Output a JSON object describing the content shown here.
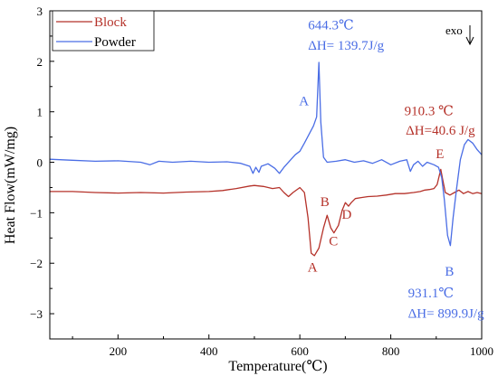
{
  "chart_data": {
    "type": "line",
    "xlabel": "Temperature(℃)",
    "ylabel": "Heat Flow(mW/mg)",
    "xlim": [
      50,
      1000
    ],
    "ylim": [
      -3.5,
      3
    ],
    "x_ticks": [
      200,
      400,
      600,
      800,
      1000
    ],
    "x_tick_labels": [
      "200",
      "400",
      "600",
      "800",
      "1000"
    ],
    "y_ticks": [
      3,
      2,
      1,
      0,
      -1,
      -2,
      -3
    ],
    "y_tick_labels": [
      "3",
      "2",
      "1",
      "0",
      "−1",
      "−2",
      "−3"
    ],
    "grid": false,
    "legend_position": "top-left",
    "exo_label": "exo",
    "series": [
      {
        "name": "Block",
        "color": "#b5322a",
        "points": [
          [
            50,
            -0.58
          ],
          [
            100,
            -0.58
          ],
          [
            150,
            -0.6
          ],
          [
            200,
            -0.61
          ],
          [
            250,
            -0.6
          ],
          [
            300,
            -0.61
          ],
          [
            350,
            -0.59
          ],
          [
            400,
            -0.58
          ],
          [
            430,
            -0.56
          ],
          [
            460,
            -0.52
          ],
          [
            490,
            -0.47
          ],
          [
            500,
            -0.46
          ],
          [
            520,
            -0.48
          ],
          [
            540,
            -0.52
          ],
          [
            555,
            -0.5
          ],
          [
            565,
            -0.6
          ],
          [
            575,
            -0.68
          ],
          [
            585,
            -0.6
          ],
          [
            600,
            -0.5
          ],
          [
            610,
            -0.6
          ],
          [
            618,
            -1.1
          ],
          [
            625,
            -1.8
          ],
          [
            632,
            -1.85
          ],
          [
            642,
            -1.7
          ],
          [
            652,
            -1.3
          ],
          [
            660,
            -1.05
          ],
          [
            668,
            -1.3
          ],
          [
            675,
            -1.4
          ],
          [
            685,
            -1.25
          ],
          [
            693,
            -0.95
          ],
          [
            700,
            -0.8
          ],
          [
            707,
            -0.87
          ],
          [
            713,
            -0.8
          ],
          [
            722,
            -0.72
          ],
          [
            735,
            -0.7
          ],
          [
            750,
            -0.68
          ],
          [
            770,
            -0.67
          ],
          [
            790,
            -0.65
          ],
          [
            810,
            -0.62
          ],
          [
            830,
            -0.62
          ],
          [
            850,
            -0.6
          ],
          [
            865,
            -0.58
          ],
          [
            875,
            -0.55
          ],
          [
            885,
            -0.54
          ],
          [
            895,
            -0.52
          ],
          [
            902,
            -0.44
          ],
          [
            910,
            -0.14
          ],
          [
            914,
            -0.33
          ],
          [
            920,
            -0.6
          ],
          [
            930,
            -0.65
          ],
          [
            940,
            -0.6
          ],
          [
            950,
            -0.55
          ],
          [
            960,
            -0.62
          ],
          [
            970,
            -0.58
          ],
          [
            980,
            -0.62
          ],
          [
            990,
            -0.6
          ],
          [
            1000,
            -0.62
          ]
        ],
        "peak_labels": [
          {
            "text": "A",
            "x": 628,
            "y": -2.17
          },
          {
            "text": "B",
            "x": 655,
            "y": -0.87
          },
          {
            "text": "C",
            "x": 674,
            "y": -1.65
          },
          {
            "text": "D",
            "x": 703,
            "y": -1.12
          },
          {
            "text": "E",
            "x": 908,
            "y": 0.08
          }
        ],
        "annotations": [
          {
            "text": "910.3 ℃",
            "x": 830,
            "y": 0.93
          },
          {
            "text": "ΔH=40.6 J/g",
            "x": 833,
            "y": 0.55
          }
        ]
      },
      {
        "name": "Powder",
        "color": "#4a6de5",
        "points": [
          [
            50,
            0.06
          ],
          [
            100,
            0.04
          ],
          [
            150,
            0.02
          ],
          [
            200,
            0.03
          ],
          [
            250,
            0.0
          ],
          [
            270,
            -0.05
          ],
          [
            290,
            0.02
          ],
          [
            320,
            0.0
          ],
          [
            360,
            0.02
          ],
          [
            400,
            0.0
          ],
          [
            440,
            0.01
          ],
          [
            470,
            -0.02
          ],
          [
            490,
            -0.08
          ],
          [
            497,
            -0.22
          ],
          [
            503,
            -0.1
          ],
          [
            510,
            -0.2
          ],
          [
            515,
            -0.08
          ],
          [
            530,
            -0.03
          ],
          [
            545,
            -0.12
          ],
          [
            555,
            -0.22
          ],
          [
            565,
            -0.1
          ],
          [
            580,
            0.05
          ],
          [
            590,
            0.15
          ],
          [
            600,
            0.22
          ],
          [
            610,
            0.38
          ],
          [
            620,
            0.55
          ],
          [
            630,
            0.72
          ],
          [
            637,
            0.9
          ],
          [
            642,
            1.98
          ],
          [
            646,
            0.8
          ],
          [
            652,
            0.1
          ],
          [
            660,
            0.0
          ],
          [
            680,
            0.02
          ],
          [
            700,
            0.05
          ],
          [
            720,
            0.0
          ],
          [
            740,
            0.03
          ],
          [
            760,
            -0.02
          ],
          [
            780,
            0.05
          ],
          [
            800,
            -0.05
          ],
          [
            820,
            0.02
          ],
          [
            835,
            0.05
          ],
          [
            843,
            -0.18
          ],
          [
            850,
            -0.05
          ],
          [
            860,
            0.02
          ],
          [
            870,
            -0.08
          ],
          [
            880,
            0.0
          ],
          [
            895,
            -0.05
          ],
          [
            905,
            -0.1
          ],
          [
            912,
            -0.3
          ],
          [
            918,
            -0.75
          ],
          [
            925,
            -1.45
          ],
          [
            931,
            -1.65
          ],
          [
            937,
            -1.1
          ],
          [
            945,
            -0.5
          ],
          [
            953,
            0.05
          ],
          [
            962,
            0.35
          ],
          [
            970,
            0.45
          ],
          [
            980,
            0.38
          ],
          [
            990,
            0.25
          ],
          [
            1000,
            0.15
          ]
        ],
        "peak_labels": [
          {
            "text": "A",
            "x": 609,
            "y": 1.13
          },
          {
            "text": "B",
            "x": 929,
            "y": -2.25
          }
        ],
        "annotations": [
          {
            "text": "644.3℃",
            "x": 618,
            "y": 2.63
          },
          {
            "text": "ΔH= 139.7J/g",
            "x": 618,
            "y": 2.23
          },
          {
            "text": "931.1℃",
            "x": 838,
            "y": -2.68
          },
          {
            "text": "ΔH= 899.9J/g",
            "x": 838,
            "y": -3.08
          }
        ]
      }
    ]
  }
}
